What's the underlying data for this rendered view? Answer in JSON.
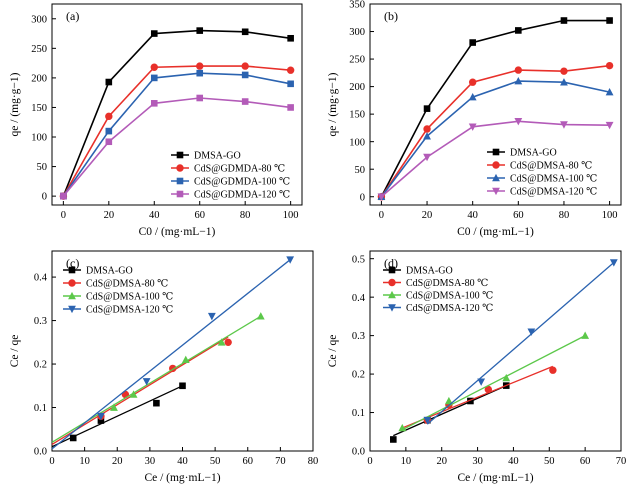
{
  "chart_data": [
    {
      "type": "line",
      "panel_label": "(a)",
      "xlabel": "C0 / (mg·mL−1)",
      "ylabel": "qe / (mg·g−1)",
      "xlim": [
        -5,
        105
      ],
      "ylim": [
        -15,
        325
      ],
      "xticks": [
        0,
        20,
        40,
        60,
        80,
        100
      ],
      "yticks": [
        0,
        50,
        100,
        150,
        200,
        250,
        300
      ],
      "legend_position": "lower-right",
      "series": [
        {
          "name": "DMSA-GO",
          "color": "#000000",
          "marker": "square",
          "points": [
            [
              0,
              0
            ],
            [
              20,
              193
            ],
            [
              40,
              275
            ],
            [
              60,
              280
            ],
            [
              80,
              278
            ],
            [
              100,
              267
            ]
          ]
        },
        {
          "name": "CdS@GDMDA-80 ℃",
          "color": "#e8302a",
          "marker": "circle",
          "points": [
            [
              0,
              0
            ],
            [
              20,
              135
            ],
            [
              40,
              218
            ],
            [
              60,
              220
            ],
            [
              80,
              220
            ],
            [
              100,
              213
            ]
          ]
        },
        {
          "name": "CdS@GDMDA-100 ℃",
          "color": "#2b63b0",
          "marker": "square",
          "points": [
            [
              0,
              0
            ],
            [
              20,
              110
            ],
            [
              40,
              200
            ],
            [
              60,
              208
            ],
            [
              80,
              205
            ],
            [
              100,
              190
            ]
          ]
        },
        {
          "name": "CdS@GDMDA-120 ℃",
          "color": "#b35bb8",
          "marker": "square",
          "points": [
            [
              0,
              0
            ],
            [
              20,
              92
            ],
            [
              40,
              157
            ],
            [
              60,
              166
            ],
            [
              80,
              160
            ],
            [
              100,
              150
            ]
          ]
        }
      ]
    },
    {
      "type": "line",
      "panel_label": "(b)",
      "xlabel": "C0 / (mg·mL−1)",
      "ylabel": "qe / (mg·g−1)",
      "xlim": [
        -5,
        105
      ],
      "ylim": [
        -15,
        350
      ],
      "xticks": [
        0,
        20,
        40,
        60,
        80,
        100
      ],
      "yticks": [
        0,
        50,
        100,
        150,
        200,
        250,
        300,
        350
      ],
      "legend_position": "lower-right",
      "series": [
        {
          "name": "DMSA-GO",
          "color": "#000000",
          "marker": "square",
          "points": [
            [
              0,
              0
            ],
            [
              20,
              160
            ],
            [
              40,
              280
            ],
            [
              60,
              302
            ],
            [
              80,
              320
            ],
            [
              100,
              320
            ]
          ]
        },
        {
          "name": "CdS@DMSA-80 ℃",
          "color": "#e8302a",
          "marker": "circle",
          "points": [
            [
              0,
              0
            ],
            [
              20,
              123
            ],
            [
              40,
              208
            ],
            [
              60,
              230
            ],
            [
              80,
              228
            ],
            [
              100,
              238
            ]
          ]
        },
        {
          "name": "CdS@DMSA-100 ℃",
          "color": "#2b63b0",
          "marker": "triangle-up",
          "points": [
            [
              0,
              0
            ],
            [
              20,
              110
            ],
            [
              40,
              181
            ],
            [
              60,
              210
            ],
            [
              80,
              208
            ],
            [
              100,
              190
            ]
          ]
        },
        {
          "name": "CdS@DMSA-120 ℃",
          "color": "#b35bb8",
          "marker": "triangle-down",
          "points": [
            [
              0,
              0
            ],
            [
              20,
              72
            ],
            [
              40,
              127
            ],
            [
              60,
              137
            ],
            [
              80,
              131
            ],
            [
              100,
              130
            ]
          ]
        }
      ]
    },
    {
      "type": "scatter",
      "panel_label": "(c)",
      "xlabel": "Ce / (mg·mL−1)",
      "ylabel": "Ce / qe",
      "xlim": [
        0,
        80
      ],
      "ylim": [
        0,
        0.46
      ],
      "xticks": [
        0,
        10,
        20,
        30,
        40,
        50,
        60,
        70,
        80
      ],
      "yticks": [
        0.0,
        0.1,
        0.2,
        0.3,
        0.4
      ],
      "legend_position": "top-left",
      "series": [
        {
          "name": "DMSA-GO",
          "color": "#000000",
          "marker": "square",
          "points": [
            [
              6.5,
              0.03
            ],
            [
              15,
              0.07
            ],
            [
              32,
              0.11
            ],
            [
              40,
              0.15
            ]
          ],
          "fit": [
            [
              0,
              0.01
            ],
            [
              40,
              0.15
            ]
          ]
        },
        {
          "name": "CdS@DMSA-80 ℃",
          "color": "#e8302a",
          "marker": "circle",
          "points": [
            [
              15,
              0.08
            ],
            [
              22.5,
              0.13
            ],
            [
              37,
              0.19
            ],
            [
              54,
              0.25
            ]
          ],
          "fit": [
            [
              0,
              0.015
            ],
            [
              54,
              0.262
            ]
          ]
        },
        {
          "name": "CdS@DMSA-100 ℃",
          "color": "#5cc84a",
          "marker": "triangle-up",
          "points": [
            [
              19,
              0.1
            ],
            [
              25,
              0.13
            ],
            [
              41,
              0.21
            ],
            [
              52,
              0.25
            ],
            [
              64,
              0.31
            ]
          ],
          "fit": [
            [
              0,
              0.02
            ],
            [
              64,
              0.31
            ]
          ]
        },
        {
          "name": "CdS@DMSA-120 ℃",
          "color": "#2b63b0",
          "marker": "triangle-down",
          "points": [
            [
              15,
              0.08
            ],
            [
              29,
              0.16
            ],
            [
              49,
              0.31
            ],
            [
              73,
              0.44
            ]
          ],
          "fit": [
            [
              0,
              0.005
            ],
            [
              73,
              0.44
            ]
          ]
        }
      ]
    },
    {
      "type": "scatter",
      "panel_label": "(d)",
      "xlabel": "Ce / (mg·mL−1)",
      "ylabel": "Ce / qe",
      "xlim": [
        0,
        70
      ],
      "ylim": [
        0,
        0.52
      ],
      "xticks": [
        0,
        10,
        20,
        30,
        40,
        50,
        60,
        70
      ],
      "yticks": [
        0.0,
        0.1,
        0.2,
        0.3,
        0.4,
        0.5
      ],
      "legend_position": "top-left",
      "series": [
        {
          "name": "DMSA-GO",
          "color": "#000000",
          "marker": "square",
          "points": [
            [
              6.5,
              0.03
            ],
            [
              16,
              0.08
            ],
            [
              28,
              0.13
            ],
            [
              38,
              0.17
            ]
          ],
          "fit": [
            [
              6.5,
              0.04
            ],
            [
              38,
              0.17
            ]
          ]
        },
        {
          "name": "CdS@DMSA-80 ℃",
          "color": "#e8302a",
          "marker": "circle",
          "points": [
            [
              16,
              0.08
            ],
            [
              22,
              0.12
            ],
            [
              33,
              0.16
            ],
            [
              51,
              0.21
            ]
          ],
          "fit": [
            [
              9,
              0.06
            ],
            [
              51,
              0.22
            ]
          ]
        },
        {
          "name": "CdS@DMSA-100 ℃",
          "color": "#5cc84a",
          "marker": "triangle-up",
          "points": [
            [
              9,
              0.06
            ],
            [
              22,
              0.13
            ],
            [
              38,
              0.19
            ],
            [
              60,
              0.3
            ]
          ],
          "fit": [
            [
              9,
              0.055
            ],
            [
              60,
              0.3
            ]
          ]
        },
        {
          "name": "CdS@DMSA-120 ℃",
          "color": "#2b63b0",
          "marker": "triangle-down",
          "points": [
            [
              16,
              0.08
            ],
            [
              31,
              0.18
            ],
            [
              45,
              0.31
            ],
            [
              68,
              0.49
            ]
          ],
          "fit": [
            [
              16,
              0.07
            ],
            [
              68,
              0.49
            ]
          ]
        }
      ]
    }
  ]
}
